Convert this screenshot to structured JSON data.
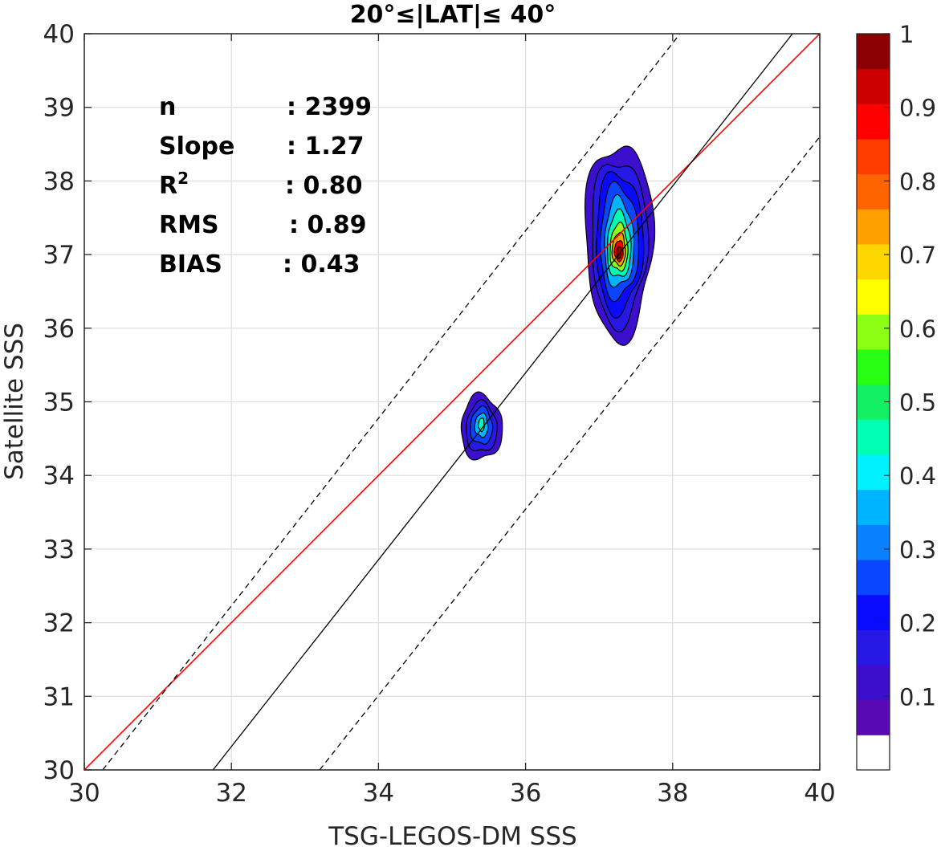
{
  "chart_data": {
    "type": "contour",
    "title": "20°≤|LAT|≤ 40°",
    "xlabel": "TSG-LEGOS-DM SSS",
    "ylabel": "Satellite SSS",
    "xlim": [
      30,
      40
    ],
    "ylim": [
      30,
      40
    ],
    "xticks": [
      30,
      32,
      34,
      36,
      38,
      40
    ],
    "yticks": [
      30,
      31,
      32,
      33,
      34,
      35,
      36,
      37,
      38,
      39,
      40
    ],
    "grid": true,
    "stats": [
      {
        "label": "n",
        "value": ": 2399"
      },
      {
        "label": "Slope",
        "value": ": 1.27"
      },
      {
        "label": "R",
        "sup": "2",
        "value": ": 0.80"
      },
      {
        "label": "RMS",
        "value": ": 0.89"
      },
      {
        "label": "BIAS",
        "value": ": 0.43"
      }
    ],
    "lines": [
      {
        "name": "one-to-one",
        "color": "#ff0000",
        "style": "solid",
        "points": [
          [
            30,
            30
          ],
          [
            40,
            40
          ]
        ]
      },
      {
        "name": "regression",
        "color": "#000000",
        "style": "solid",
        "points": [
          [
            31.75,
            30
          ],
          [
            39.63,
            40
          ]
        ]
      },
      {
        "name": "upper-bound",
        "color": "#000000",
        "style": "dashed",
        "points": [
          [
            30.25,
            30
          ],
          [
            38.1,
            40
          ]
        ]
      },
      {
        "name": "lower-bound",
        "color": "#000000",
        "style": "dashed",
        "points": [
          [
            33.2,
            30
          ],
          [
            40,
            38.6
          ]
        ]
      }
    ],
    "density_clusters": [
      {
        "center": [
          37.27,
          37.15
        ],
        "peak": 1.0,
        "levels": [
          {
            "level": 0.05,
            "rx": 0.46,
            "ry": 1.32,
            "dy": 0.05
          },
          {
            "level": 0.1,
            "rx": 0.38,
            "ry": 1.12,
            "dy": 0.03
          },
          {
            "level": 0.15,
            "rx": 0.32,
            "ry": 0.95,
            "dy": 0.02
          },
          {
            "level": 0.2,
            "rx": 0.26,
            "ry": 0.77,
            "dy": 0.02
          },
          {
            "level": 0.3,
            "rx": 0.2,
            "ry": 0.6,
            "dy": 0.0
          },
          {
            "level": 0.4,
            "rx": 0.16,
            "ry": 0.45,
            "dy": -0.03
          },
          {
            "level": 0.55,
            "rx": 0.12,
            "ry": 0.32,
            "dy": -0.06
          },
          {
            "level": 0.7,
            "rx": 0.09,
            "ry": 0.22,
            "dy": -0.08
          },
          {
            "level": 0.85,
            "rx": 0.06,
            "ry": 0.14,
            "dy": -0.1
          },
          {
            "level": 0.95,
            "rx": 0.035,
            "ry": 0.08,
            "dy": -0.12
          }
        ]
      },
      {
        "center": [
          35.4,
          34.65
        ],
        "peak": 0.45,
        "levels": [
          {
            "level": 0.05,
            "rx": 0.28,
            "ry": 0.44,
            "dy": 0.0
          },
          {
            "level": 0.1,
            "rx": 0.21,
            "ry": 0.34,
            "dy": 0.0
          },
          {
            "level": 0.2,
            "rx": 0.15,
            "ry": 0.25,
            "dy": 0.02
          },
          {
            "level": 0.3,
            "rx": 0.09,
            "ry": 0.16,
            "dy": 0.03
          },
          {
            "level": 0.4,
            "rx": 0.04,
            "ry": 0.09,
            "dy": 0.04
          }
        ]
      }
    ],
    "colorbar": {
      "ticks": [
        "0.1",
        "0.2",
        "0.3",
        "0.4",
        "0.5",
        "0.6",
        "0.7",
        "0.8",
        "0.9",
        "1"
      ],
      "tick_values": [
        0.1,
        0.2,
        0.3,
        0.4,
        0.5,
        0.6,
        0.7,
        0.8,
        0.9,
        1.0
      ],
      "colors": [
        "#ffffff",
        "#5a0ab4",
        "#3c0fcd",
        "#2818e6",
        "#0a0aff",
        "#0a46ff",
        "#0a82ff",
        "#00b4ff",
        "#00f0ff",
        "#00ffb0",
        "#14f064",
        "#28ff14",
        "#8cff14",
        "#ffff00",
        "#ffd700",
        "#ffa000",
        "#ff6400",
        "#ff3c00",
        "#ff0000",
        "#cd0000",
        "#8b0000"
      ]
    }
  }
}
